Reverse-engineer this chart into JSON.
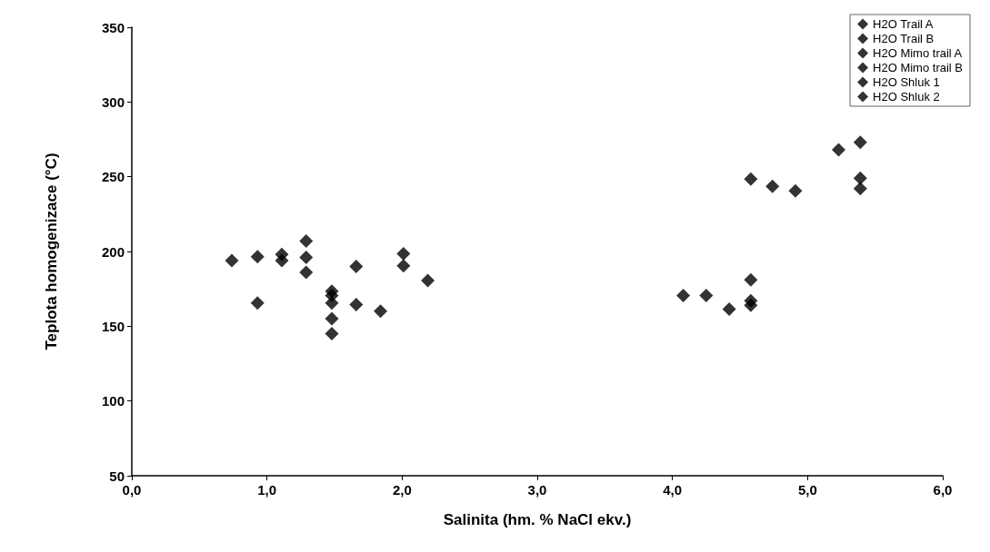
{
  "chart_data": {
    "type": "scatter",
    "xlabel": "Salinita (hm. % NaCl ekv.)",
    "ylabel": "Teplota homogenizace (°C)",
    "xlim": [
      0,
      6
    ],
    "xticks": [
      {
        "value": 0,
        "label": "0,0"
      },
      {
        "value": 1,
        "label": "1,0"
      },
      {
        "value": 2,
        "label": "2,0"
      },
      {
        "value": 3,
        "label": "3,0"
      },
      {
        "value": 4,
        "label": "4,0"
      },
      {
        "value": 5,
        "label": "5,0"
      },
      {
        "value": 6,
        "label": "6,0"
      }
    ],
    "ylim": [
      50,
      350
    ],
    "yticks": [
      50,
      100,
      150,
      200,
      250,
      300,
      350
    ],
    "grid": false,
    "legend": "top right",
    "marker": "diamond",
    "series": [
      {
        "name": "H2O Trail A",
        "color": "#000000",
        "x": [
          0.74,
          0.93,
          0.93,
          1.11,
          1.11,
          1.29,
          1.29,
          1.29
        ],
        "values": [
          194,
          196.5,
          165.5,
          198,
          194,
          207,
          196,
          186
        ]
      },
      {
        "name": "H2O Trail B",
        "color": "#000000",
        "x": [
          1.48,
          1.48,
          1.48,
          1.48,
          1.48,
          1.66,
          1.66,
          1.84,
          2.01,
          2.01,
          2.19
        ],
        "values": [
          173.5,
          170.5,
          165.5,
          155,
          145,
          190,
          164.5,
          160,
          198.5,
          190.5,
          180.5
        ]
      },
      {
        "name": "H2O Mimo trail A",
        "color": "#000000",
        "x": [
          4.08,
          4.25,
          4.42
        ],
        "values": [
          170.5,
          170.5,
          161.5
        ]
      },
      {
        "name": "H2O Mimo trail B",
        "color": "#000000",
        "x": [
          4.58,
          4.58,
          4.58
        ],
        "values": [
          181,
          167,
          164
        ]
      },
      {
        "name": "H2O Shluk 1",
        "color": "#000000",
        "x": [
          4.58,
          4.74,
          4.91
        ],
        "values": [
          248.5,
          243.5,
          240.5
        ]
      },
      {
        "name": "H2O Shluk 2",
        "color": "#000000",
        "x": [
          5.23,
          5.39,
          5.39,
          5.39
        ],
        "values": [
          268,
          273,
          249,
          242
        ]
      }
    ]
  }
}
